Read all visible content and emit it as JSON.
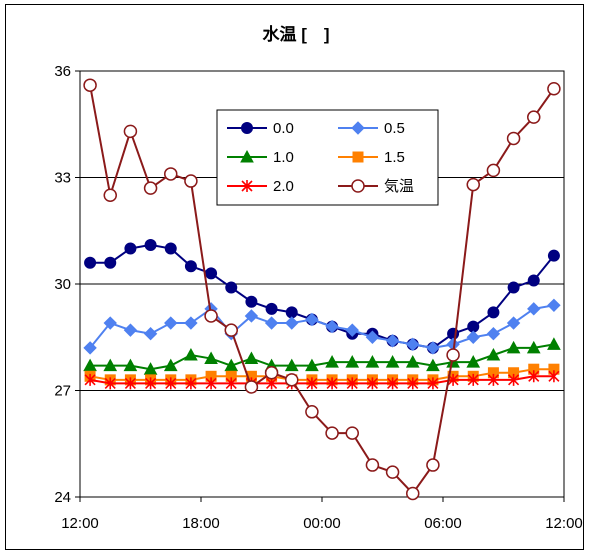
{
  "chart_data": {
    "type": "line",
    "title": "水温 [　]",
    "xlabel": "",
    "ylabel": "",
    "ylim": [
      24,
      36
    ],
    "yticks": [
      "24",
      "27",
      "30",
      "33",
      "36"
    ],
    "xlim": [
      0,
      24
    ],
    "xticks": [
      {
        "pos": 0,
        "label": "12:00"
      },
      {
        "pos": 6,
        "label": "18:00"
      },
      {
        "pos": 12,
        "label": "00:00"
      },
      {
        "pos": 18,
        "label": "06:00"
      },
      {
        "pos": 24,
        "label": "12:00"
      }
    ],
    "grid": "horizontal",
    "legend_position": "top-center",
    "x": [
      0.5,
      1.5,
      2.5,
      3.5,
      4.5,
      5.5,
      6.5,
      7.5,
      8.5,
      9.5,
      10.5,
      11.5,
      12.5,
      13.5,
      14.5,
      15.5,
      16.5,
      17.5,
      18.5,
      19.5,
      20.5,
      21.5,
      22.5,
      23.5
    ],
    "series": [
      {
        "name": "0.0",
        "color": "#000080",
        "marker": "circle-filled",
        "values": [
          30.6,
          30.6,
          31.0,
          31.1,
          31.0,
          30.5,
          30.3,
          29.9,
          29.5,
          29.3,
          29.2,
          29.0,
          28.8,
          28.6,
          28.6,
          28.4,
          28.3,
          28.2,
          28.6,
          28.8,
          29.2,
          29.9,
          30.1,
          30.8
        ]
      },
      {
        "name": "0.5",
        "color": "#4f81f0",
        "marker": "diamond-filled",
        "values": [
          28.2,
          28.9,
          28.7,
          28.6,
          28.9,
          28.9,
          29.3,
          28.6,
          29.1,
          28.9,
          28.9,
          29.0,
          28.8,
          28.7,
          28.5,
          28.4,
          28.3,
          28.2,
          28.3,
          28.5,
          28.6,
          28.9,
          29.3,
          29.4
        ]
      },
      {
        "name": "1.0",
        "color": "#008000",
        "marker": "triangle-filled",
        "values": [
          27.7,
          27.7,
          27.7,
          27.6,
          27.7,
          28.0,
          27.9,
          27.7,
          27.9,
          27.7,
          27.7,
          27.7,
          27.8,
          27.8,
          27.8,
          27.8,
          27.8,
          27.7,
          27.8,
          27.8,
          28.0,
          28.2,
          28.2,
          28.3
        ]
      },
      {
        "name": "1.5",
        "color": "#ff8000",
        "marker": "square-filled",
        "values": [
          27.4,
          27.3,
          27.3,
          27.3,
          27.3,
          27.3,
          27.4,
          27.4,
          27.4,
          27.4,
          27.3,
          27.3,
          27.3,
          27.3,
          27.3,
          27.3,
          27.3,
          27.3,
          27.4,
          27.4,
          27.5,
          27.5,
          27.6,
          27.6
        ]
      },
      {
        "name": "2.0",
        "color": "#ff0000",
        "marker": "asterisk",
        "values": [
          27.3,
          27.2,
          27.2,
          27.2,
          27.2,
          27.2,
          27.2,
          27.2,
          27.2,
          27.2,
          27.2,
          27.2,
          27.2,
          27.2,
          27.2,
          27.2,
          27.2,
          27.2,
          27.3,
          27.3,
          27.3,
          27.3,
          27.4,
          27.4
        ]
      },
      {
        "name": "気温",
        "color": "#8b1a1a",
        "marker": "circle-open",
        "values": [
          35.6,
          32.5,
          34.3,
          32.7,
          33.1,
          32.9,
          29.1,
          28.7,
          27.1,
          27.5,
          27.3,
          26.4,
          25.8,
          25.8,
          24.9,
          24.7,
          24.1,
          24.9,
          28.0,
          32.8,
          33.2,
          34.1,
          34.7,
          35.5
        ]
      }
    ]
  }
}
